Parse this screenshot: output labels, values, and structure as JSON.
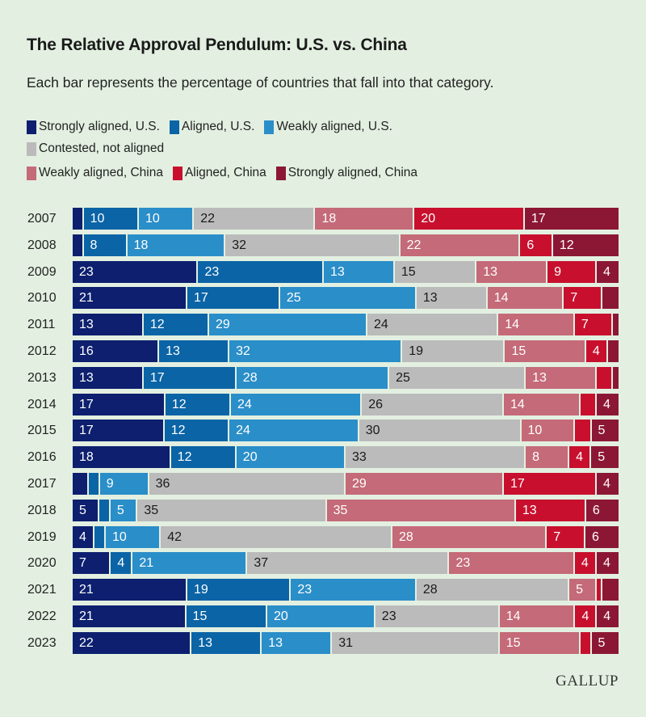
{
  "chart_data": {
    "type": "bar",
    "orientation": "horizontal",
    "stacked": true,
    "title": "The Relative Approval Pendulum: U.S. vs. China",
    "subtitle": "Each bar represents the percentage of countries that fall into that category.",
    "categories": [
      "2007",
      "2008",
      "2009",
      "2010",
      "2011",
      "2012",
      "2013",
      "2014",
      "2015",
      "2016",
      "2017",
      "2018",
      "2019",
      "2020",
      "2021",
      "2022",
      "2023"
    ],
    "xlim": [
      0,
      100
    ],
    "grid": false,
    "legend_placement": "top",
    "series": [
      {
        "name": "Strongly aligned, U.S.",
        "color": "#0d1f6e",
        "values": [
          2,
          2,
          23,
          21,
          13,
          16,
          13,
          17,
          17,
          18,
          3,
          5,
          4,
          7,
          21,
          21,
          22
        ]
      },
      {
        "name": "Aligned, U.S.",
        "color": "#0b64a6",
        "values": [
          10,
          8,
          23,
          17,
          12,
          13,
          17,
          12,
          12,
          12,
          2,
          2,
          2,
          4,
          19,
          15,
          13
        ]
      },
      {
        "name": "Weakly aligned, U.S.",
        "color": "#2a8ec9",
        "values": [
          10,
          18,
          13,
          25,
          29,
          32,
          28,
          24,
          24,
          20,
          9,
          5,
          10,
          21,
          23,
          20,
          13
        ]
      },
      {
        "name": "Contested, not aligned",
        "color": "#bbbbbb",
        "values": [
          22,
          32,
          15,
          13,
          24,
          19,
          25,
          26,
          30,
          33,
          36,
          35,
          42,
          37,
          28,
          23,
          31
        ]
      },
      {
        "name": "Weakly aligned, China",
        "color": "#c46a78",
        "values": [
          18,
          22,
          13,
          14,
          14,
          15,
          13,
          14,
          10,
          8,
          29,
          35,
          28,
          23,
          5,
          14,
          15
        ]
      },
      {
        "name": "Aligned, China",
        "color": "#c8102e",
        "values": [
          20,
          6,
          9,
          7,
          7,
          4,
          3,
          3,
          3,
          4,
          17,
          13,
          7,
          4,
          1,
          4,
          2
        ]
      },
      {
        "name": "Strongly aligned, China",
        "color": "#8c1734",
        "values": [
          17,
          12,
          4,
          3,
          1,
          2,
          1,
          4,
          5,
          5,
          4,
          6,
          6,
          4,
          3,
          4,
          5
        ]
      }
    ]
  },
  "source_logo": "GALLUP",
  "background_color": "#e3f0e1"
}
